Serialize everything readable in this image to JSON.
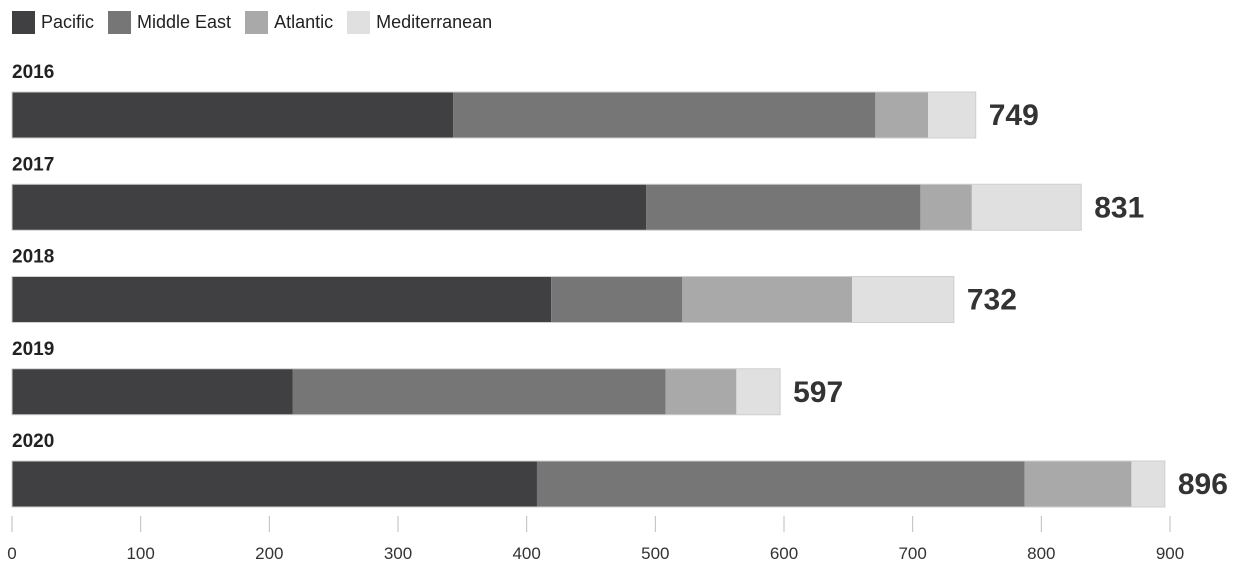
{
  "chart_data": {
    "type": "bar",
    "orientation": "horizontal",
    "stacked": true,
    "categories": [
      "2016",
      "2017",
      "2018",
      "2019",
      "2020"
    ],
    "series": [
      {
        "name": "Pacific",
        "color": "#404042",
        "values": [
          343,
          493,
          419,
          218,
          408
        ]
      },
      {
        "name": "Middle East",
        "color": "#767676",
        "values": [
          328,
          213,
          102,
          290,
          379
        ]
      },
      {
        "name": "Atlantic",
        "color": "#a9a9a9",
        "values": [
          41,
          40,
          132,
          55,
          83
        ]
      },
      {
        "name": "Mediterranean",
        "color": "#e0e0e0",
        "values": [
          37,
          85,
          79,
          34,
          26
        ]
      }
    ],
    "totals": [
      749,
      831,
      732,
      597,
      896
    ],
    "xlim": [
      0,
      900
    ],
    "xticks": [
      0,
      100,
      200,
      300,
      400,
      500,
      600,
      700,
      800,
      900
    ],
    "legend_position": "top-left",
    "grid": false
  }
}
